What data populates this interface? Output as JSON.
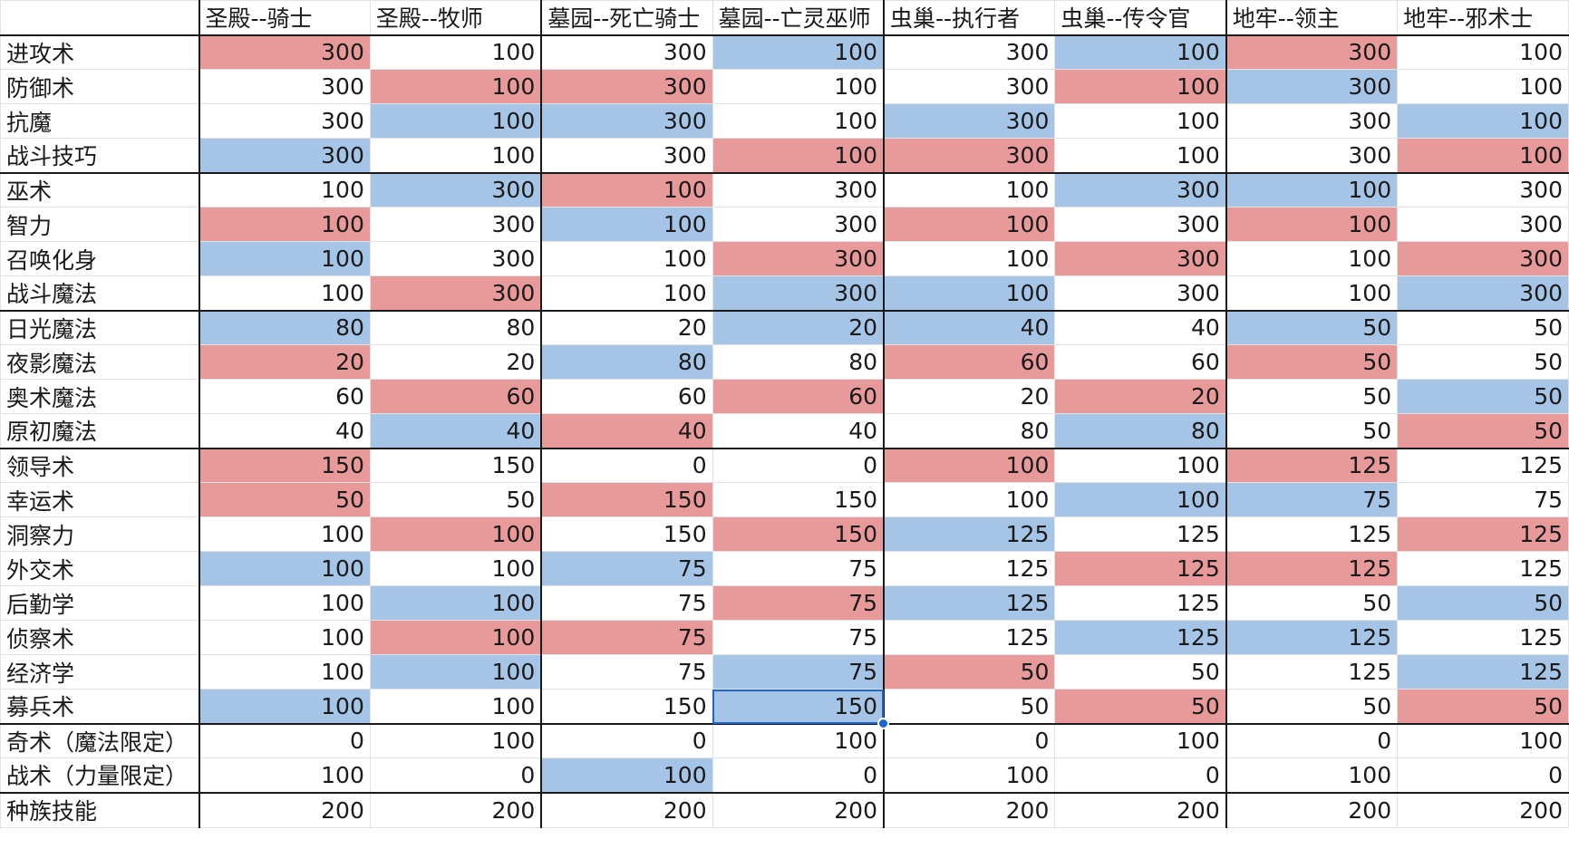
{
  "headers": [
    "",
    "圣殿--骑士",
    "圣殿--牧师",
    "墓园--死亡骑士",
    "墓园--亡灵巫师",
    "虫巢--执行者",
    "虫巢--传令官",
    "地牢--领主",
    "地牢--邪术士"
  ],
  "rows": [
    {
      "label": "进攻术",
      "values": [
        "300",
        "100",
        "300",
        "100",
        "300",
        "100",
        "300",
        "100"
      ]
    },
    {
      "label": "防御术",
      "values": [
        "300",
        "100",
        "300",
        "100",
        "300",
        "100",
        "300",
        "100"
      ]
    },
    {
      "label": "抗魔",
      "values": [
        "300",
        "100",
        "300",
        "100",
        "300",
        "100",
        "300",
        "100"
      ]
    },
    {
      "label": "战斗技巧",
      "values": [
        "300",
        "100",
        "300",
        "100",
        "300",
        "100",
        "300",
        "100"
      ]
    },
    {
      "label": "巫术",
      "values": [
        "100",
        "300",
        "100",
        "300",
        "100",
        "300",
        "100",
        "300"
      ]
    },
    {
      "label": "智力",
      "values": [
        "100",
        "300",
        "100",
        "300",
        "100",
        "300",
        "100",
        "300"
      ]
    },
    {
      "label": "召唤化身",
      "values": [
        "100",
        "300",
        "100",
        "300",
        "100",
        "300",
        "100",
        "300"
      ]
    },
    {
      "label": "战斗魔法",
      "values": [
        "100",
        "300",
        "100",
        "300",
        "100",
        "300",
        "100",
        "300"
      ]
    },
    {
      "label": "日光魔法",
      "values": [
        "80",
        "80",
        "20",
        "20",
        "40",
        "40",
        "50",
        "50"
      ]
    },
    {
      "label": "夜影魔法",
      "values": [
        "20",
        "20",
        "80",
        "80",
        "60",
        "60",
        "50",
        "50"
      ]
    },
    {
      "label": "奥术魔法",
      "values": [
        "60",
        "60",
        "60",
        "60",
        "20",
        "20",
        "50",
        "50"
      ]
    },
    {
      "label": "原初魔法",
      "values": [
        "40",
        "40",
        "40",
        "40",
        "80",
        "80",
        "50",
        "50"
      ]
    },
    {
      "label": "领导术",
      "values": [
        "150",
        "150",
        "0",
        "0",
        "100",
        "100",
        "125",
        "125"
      ]
    },
    {
      "label": "幸运术",
      "values": [
        "50",
        "50",
        "150",
        "150",
        "100",
        "100",
        "75",
        "75"
      ]
    },
    {
      "label": "洞察力",
      "values": [
        "100",
        "100",
        "150",
        "150",
        "125",
        "125",
        "125",
        "125"
      ]
    },
    {
      "label": "外交术",
      "values": [
        "100",
        "100",
        "75",
        "75",
        "125",
        "125",
        "125",
        "125"
      ]
    },
    {
      "label": "后勤学",
      "values": [
        "100",
        "100",
        "75",
        "75",
        "125",
        "125",
        "50",
        "50"
      ]
    },
    {
      "label": "侦察术",
      "values": [
        "100",
        "100",
        "75",
        "75",
        "125",
        "125",
        "125",
        "125"
      ]
    },
    {
      "label": "经济学",
      "values": [
        "100",
        "100",
        "75",
        "75",
        "50",
        "50",
        "125",
        "125"
      ]
    },
    {
      "label": "募兵术",
      "values": [
        "100",
        "100",
        "150",
        "150",
        "50",
        "50",
        "50",
        "50"
      ]
    },
    {
      "label": "奇术（魔法限定）",
      "values": [
        "0",
        "100",
        "0",
        "100",
        "0",
        "100",
        "0",
        "100"
      ]
    },
    {
      "label": "战术（力量限定）",
      "values": [
        "100",
        "0",
        "100",
        "0",
        "100",
        "0",
        "100",
        "0"
      ]
    },
    {
      "label": "种族技能",
      "values": [
        "200",
        "200",
        "200",
        "200",
        "200",
        "200",
        "200",
        "200"
      ]
    }
  ],
  "highlights": [
    "r....b.r.",
    ".r.r..r.b.",
    ".b.b..b..b",
    "b......rr..r",
    ".b.r...b.b",
    "r..b..r..r",
    "b...r..r..r",
    ".r..b.b..b",
    "b..b.b.b.",
    "r..b..r..r",
    ".r..r..r.b",
    ".b.r..b..r",
    "r.....r.r.",
    "r..r...b.b.",
    ".r..r.b...r",
    "b..b...r.r.",
    ".b..r.b...b",
    ".r.r....b.b.",
    ".b..b.r...b",
    "b....b..r..r",
    "........",
    "..b.....",
    "........"
  ],
  "colors": {
    "red": "#e89a9a",
    "blue": "#a6c5e6",
    "selection": "#1a66d4"
  },
  "selected_cell": {
    "row": 19,
    "col": 3
  }
}
